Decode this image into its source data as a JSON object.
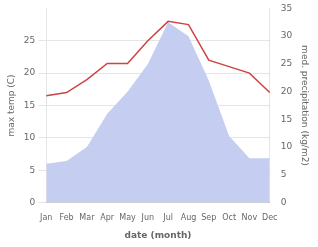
{
  "chart_data": {
    "type": "line",
    "categories": [
      "Jan",
      "Feb",
      "Mar",
      "Apr",
      "May",
      "Jun",
      "Jul",
      "Aug",
      "Sep",
      "Oct",
      "Nov",
      "Dec"
    ],
    "series": [
      {
        "type": "line",
        "color": "#cc4444",
        "values": [
          16.5,
          17.0,
          19.0,
          21.5,
          21.5,
          25.0,
          28.0,
          27.5,
          22.0,
          21.0,
          20.0,
          17.0
        ]
      },
      {
        "type": "area",
        "color": "#c5cef0",
        "axis": "y2",
        "values": [
          7.0,
          7.5,
          10.0,
          16.0,
          20.0,
          25.0,
          32.5,
          30.0,
          22.0,
          12.0,
          8.0,
          8.0
        ]
      }
    ],
    "xlabel": "date (month)",
    "ylabel": "max temp (C)",
    "y2label": "med. precipitation (kg/m2)",
    "ylim": [
      0,
      30
    ],
    "yticks": [
      0,
      5,
      10,
      15,
      20,
      25
    ],
    "y2lim": [
      0,
      35
    ],
    "y2ticks": [
      0,
      5,
      10,
      15,
      20,
      25,
      30,
      35
    ],
    "grid": true
  }
}
